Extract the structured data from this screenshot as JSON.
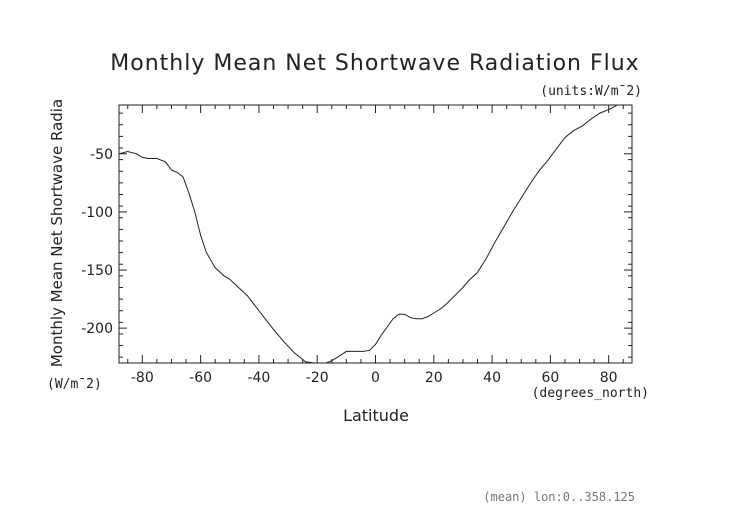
{
  "chart_data": {
    "type": "line",
    "title": "Monthly Mean Net Shortwave Radiation Flux",
    "units_label": "(units:W/m¯2)",
    "xlabel": "Latitude",
    "x_units": "(degrees_north)",
    "ylabel": "Monthly Mean Net Shortwave Radia",
    "y_units": "(W/m¯2)",
    "footnote": "(mean) lon:0..358.125",
    "xlim": [
      -88,
      88
    ],
    "ylim": [
      -230,
      -8
    ],
    "x_ticks": [
      -80,
      -60,
      -40,
      -20,
      0,
      20,
      40,
      60,
      80
    ],
    "y_ticks": [
      -50,
      -100,
      -150,
      -200
    ],
    "grid": false,
    "series": [
      {
        "x": [
          -88,
          -85,
          -82,
          -80,
          -78,
          -75,
          -72,
          -70,
          -68,
          -66,
          -64,
          -62,
          -60,
          -58,
          -55,
          -52,
          -50,
          -47,
          -44,
          -40,
          -36,
          -32,
          -28,
          -24,
          -21,
          -19,
          -17,
          -15,
          -13,
          -10,
          -7,
          -4,
          -2,
          0,
          2,
          4,
          6,
          8,
          10,
          12,
          14,
          16,
          18,
          20,
          22,
          24,
          26,
          28,
          30,
          32,
          35,
          38,
          41,
          44,
          47,
          50,
          53,
          56,
          59,
          62,
          65,
          68,
          71,
          74,
          77,
          80,
          83,
          86,
          88
        ],
        "y": [
          -50,
          -48,
          -50,
          -53,
          -54,
          -54,
          -57,
          -64,
          -66,
          -70,
          -84,
          -100,
          -120,
          -135,
          -148,
          -155,
          -158,
          -165,
          -172,
          -185,
          -198,
          -210,
          -221,
          -229,
          -231,
          -231,
          -230,
          -228,
          -225,
          -220,
          -220,
          -220,
          -219,
          -214,
          -206,
          -199,
          -192,
          -188,
          -188,
          -191,
          -192,
          -192,
          -190,
          -187,
          -184,
          -180,
          -175,
          -170,
          -165,
          -159,
          -152,
          -140,
          -126,
          -113,
          -100,
          -88,
          -76,
          -65,
          -56,
          -46,
          -36,
          -30,
          -26,
          -20,
          -15,
          -12,
          -8,
          -7,
          -7
        ]
      }
    ]
  }
}
